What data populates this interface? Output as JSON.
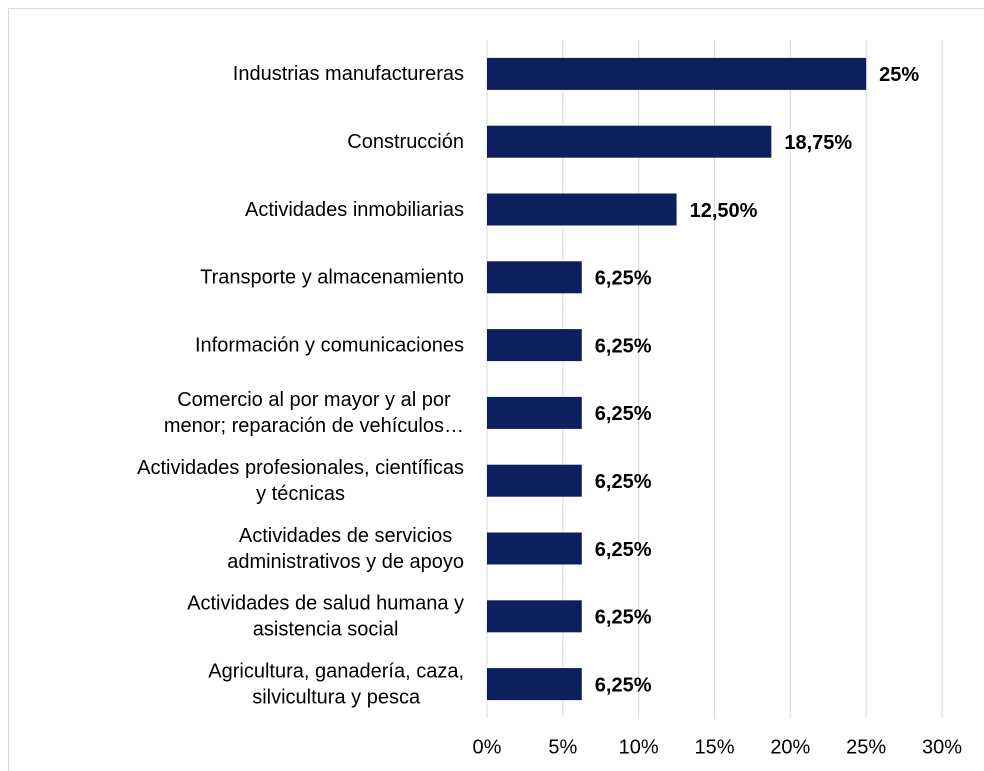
{
  "chart_data": {
    "type": "barh",
    "categories": [
      [
        "Industrias manufactureras"
      ],
      [
        "Construcción"
      ],
      [
        "Actividades inmobiliarias"
      ],
      [
        "Transporte y almacenamiento"
      ],
      [
        "Información y comunicaciones"
      ],
      [
        "Comercio al por mayor y al por",
        "menor; reparación de vehículos…"
      ],
      [
        "Actividades profesionales, científicas",
        "y técnicas"
      ],
      [
        "Actividades de servicios",
        "administrativos y de apoyo"
      ],
      [
        "Actividades de salud humana y",
        "asistencia social"
      ],
      [
        "Agricultura, ganadería, caza,",
        "silvicultura y pesca"
      ]
    ],
    "values": [
      25,
      18.75,
      12.5,
      6.25,
      6.25,
      6.25,
      6.25,
      6.25,
      6.25,
      6.25
    ],
    "value_labels": [
      "25%",
      "18,75%",
      "12,50%",
      "6,25%",
      "6,25%",
      "6,25%",
      "6,25%",
      "6,25%",
      "6,25%",
      "6,25%"
    ],
    "color": "#0d1f5c",
    "xlim": [
      0,
      30
    ],
    "xticks": [
      {
        "value": 0,
        "label": "0%"
      },
      {
        "value": 5,
        "label": "5%"
      },
      {
        "value": 10,
        "label": "10%"
      },
      {
        "value": 15,
        "label": "15%"
      },
      {
        "value": 20,
        "label": "20%"
      },
      {
        "value": 25,
        "label": "25%"
      },
      {
        "value": 30,
        "label": "30%"
      }
    ],
    "grid": true
  }
}
